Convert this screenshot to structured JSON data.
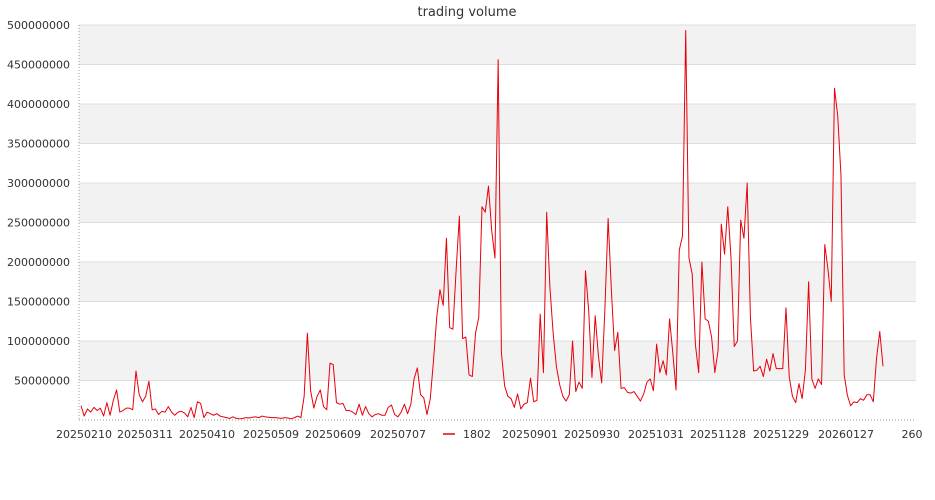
{
  "chart_data": {
    "type": "line",
    "title": "trading volume",
    "xlabel": "",
    "ylabel": "",
    "ylim": [
      0,
      500000000
    ],
    "y_ticks": [
      50000000,
      100000000,
      150000000,
      200000000,
      250000000,
      300000000,
      350000000,
      400000000,
      450000000,
      500000000
    ],
    "y_tick_labels": [
      "50000000",
      "100000000",
      "150000000",
      "200000000",
      "250000000",
      "300000000",
      "350000000",
      "400000000",
      "450000000",
      "500000000"
    ],
    "x_tick_labels": [
      "20250210",
      "20250311",
      "20250410",
      "20250509",
      "20250609",
      "20250707",
      "",
      "20250901",
      "20250930",
      "20251031",
      "20251128",
      "20251229",
      "20260127",
      "260"
    ],
    "grid": "horizontal bands",
    "legend_position": "bottom",
    "series": [
      {
        "name": "1802",
        "color": "#e8000b",
        "values": [
          18000000,
          5000000,
          14000000,
          10000000,
          16000000,
          12000000,
          15000000,
          5000000,
          22000000,
          6000000,
          25000000,
          38000000,
          10000000,
          12000000,
          15000000,
          15000000,
          13000000,
          62000000,
          32000000,
          23000000,
          30000000,
          49000000,
          13000000,
          14000000,
          7000000,
          11000000,
          10000000,
          17000000,
          10000000,
          6000000,
          10000000,
          11000000,
          9000000,
          4000000,
          16000000,
          3000000,
          23000000,
          21000000,
          3000000,
          10000000,
          8000000,
          6000000,
          8000000,
          5000000,
          4000000,
          3000000,
          2000000,
          4000000,
          2000000,
          1500000,
          2000000,
          3000000,
          2500000,
          3500000,
          4000000,
          3000000,
          5000000,
          4000000,
          3500000,
          3000000,
          3000000,
          2500000,
          2000000,
          3000000,
          2500000,
          1500000,
          3000000,
          5000000,
          3000000,
          30000000,
          110000000,
          37000000,
          15000000,
          30000000,
          38000000,
          17000000,
          13000000,
          72000000,
          70000000,
          22000000,
          20000000,
          21000000,
          12000000,
          12000000,
          10000000,
          7000000,
          20000000,
          6000000,
          17000000,
          8000000,
          4000000,
          7000000,
          8000000,
          6000000,
          6000000,
          16000000,
          19000000,
          7000000,
          4000000,
          10000000,
          20000000,
          8000000,
          20000000,
          52000000,
          66000000,
          32000000,
          28000000,
          7000000,
          27000000,
          75000000,
          130000000,
          165000000,
          145000000,
          230000000,
          117000000,
          115000000,
          190000000,
          258000000,
          103000000,
          105000000,
          57000000,
          55000000,
          110000000,
          130000000,
          270000000,
          263000000,
          296000000,
          240000000,
          205000000,
          456000000,
          85000000,
          43000000,
          30000000,
          27000000,
          16000000,
          33000000,
          14000000,
          20000000,
          22000000,
          53000000,
          23000000,
          25000000,
          134000000,
          60000000,
          263000000,
          168000000,
          110000000,
          68000000,
          45000000,
          30000000,
          24000000,
          32000000,
          100000000,
          36000000,
          48000000,
          40000000,
          189000000,
          138000000,
          54000000,
          132000000,
          81000000,
          47000000,
          140000000,
          255000000,
          165000000,
          88000000,
          111000000,
          40000000,
          41000000,
          35000000,
          34000000,
          36000000,
          30000000,
          24000000,
          33000000,
          48000000,
          52000000,
          37000000,
          96000000,
          60000000,
          75000000,
          57000000,
          128000000,
          85000000,
          38000000,
          215000000,
          233000000,
          493000000,
          205000000,
          185000000,
          95000000,
          60000000,
          200000000,
          128000000,
          125000000,
          105000000,
          60000000,
          88000000,
          248000000,
          210000000,
          270000000,
          205000000,
          93000000,
          100000000,
          253000000,
          230000000,
          300000000,
          130000000,
          62000000,
          63000000,
          68000000,
          55000000,
          77000000,
          62000000,
          84000000,
          65000000,
          65000000,
          65000000,
          142000000,
          55000000,
          30000000,
          22000000,
          46000000,
          27000000,
          63000000,
          175000000,
          52000000,
          40000000,
          52000000,
          45000000,
          222000000,
          190000000,
          150000000,
          420000000,
          385000000,
          310000000,
          57000000,
          31000000,
          18000000,
          23000000,
          22000000,
          27000000,
          25000000,
          32000000,
          32000000,
          23000000,
          78000000,
          112000000,
          68000000
        ]
      }
    ]
  }
}
